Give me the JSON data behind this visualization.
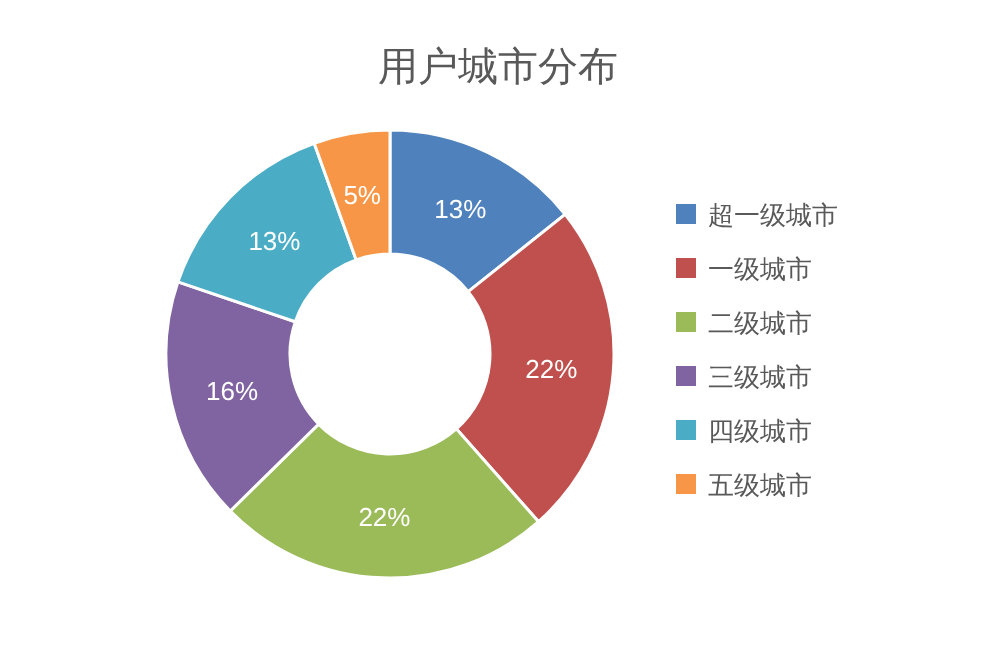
{
  "chart_data": {
    "type": "donut",
    "title": "用户城市分布",
    "categories": [
      "超一级城市",
      "一级城市",
      "二级城市",
      "三级城市",
      "四级城市",
      "五级城市"
    ],
    "values": [
      13,
      22,
      22,
      16,
      13,
      5
    ],
    "colors": [
      "#4f81bd",
      "#c0504d",
      "#9bbb59",
      "#8064a2",
      "#4bacc6",
      "#f79646"
    ],
    "value_labels": [
      "13%",
      "22%",
      "22%",
      "16%",
      "13%",
      "5%"
    ],
    "legend": "right"
  }
}
